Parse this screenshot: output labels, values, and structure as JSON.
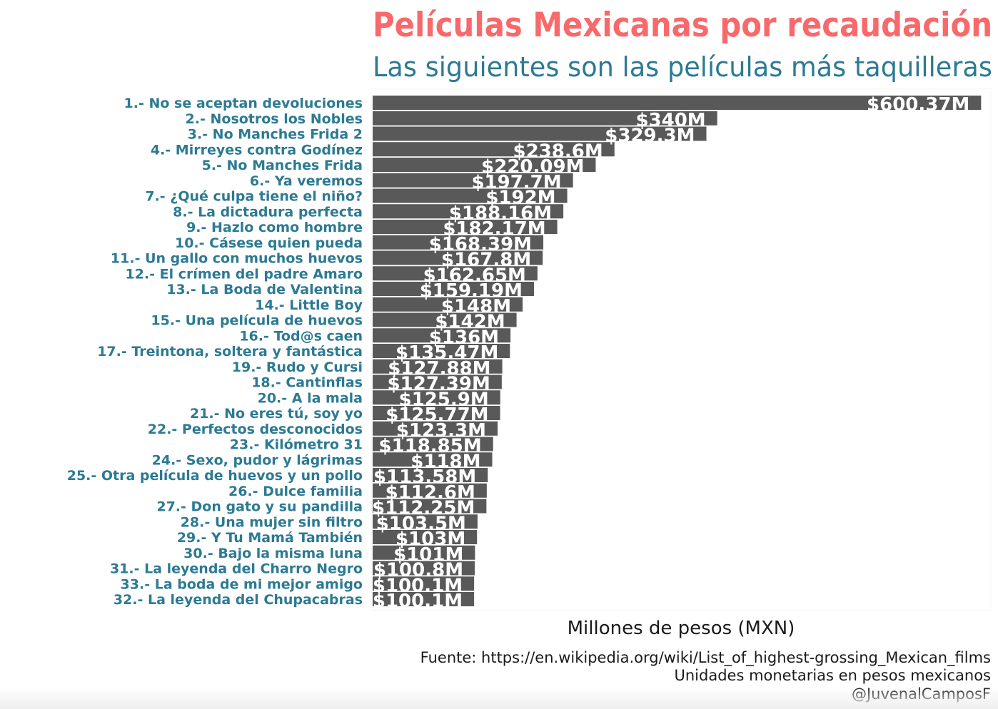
{
  "chart_data": {
    "type": "bar",
    "orientation": "horizontal",
    "title": "Películas Mexicanas por recaudación",
    "subtitle": "Las siguientes son las películas más taquilleras",
    "xlabel": "Millones de pesos (MXN)",
    "ylabel": "",
    "xlim": [
      0,
      610
    ],
    "grid": false,
    "categories": [
      "1.- No se aceptan devoluciones",
      "2.- Nosotros los Nobles",
      "3.- No Manches Frida 2",
      "4.- Mirreyes contra Godínez",
      "5.- No Manches Frida",
      "6.- Ya veremos",
      "7.- ¿Qué culpa tiene el niño?",
      "8.- La dictadura perfecta",
      "9.- Hazlo como hombre",
      "10.- Cásese quien pueda",
      "11.- Un gallo con muchos huevos",
      "12.- El crímen del padre Amaro",
      "13.- La Boda de Valentina",
      "14.- Little Boy",
      "15.- Una película de huevos",
      "16.- Tod@s caen",
      "17.- Treintona, soltera y fantástica",
      "19.- Rudo y Cursi",
      "18.- Cantinflas",
      "20.- A la mala",
      "21.- No eres tú, soy yo",
      "22.- Perfectos desconocidos",
      "23.- Kilómetro 31",
      "24.- Sexo, pudor y lágrimas",
      "25.- Otra película de huevos y un pollo",
      "26.- Dulce familia",
      "27.- Don gato y su pandilla",
      "28.- Una mujer sin filtro",
      "29.- Y Tu Mamá También",
      "30.- Bajo la misma luna",
      "31.- La leyenda del Charro Negro",
      "33.- La boda de mi mejor amigo",
      "32.- La leyenda del Chupacabras"
    ],
    "values": [
      600.37,
      340,
      329.3,
      238.6,
      220.09,
      197.7,
      192,
      188.16,
      182.17,
      168.39,
      167.8,
      162.65,
      159.19,
      148,
      142,
      136,
      135.47,
      127.88,
      127.39,
      125.9,
      125.77,
      123.3,
      118.85,
      118,
      113.58,
      112.6,
      112.25,
      103.5,
      103,
      101,
      100.8,
      100.1,
      100.1
    ],
    "data_labels": [
      "$600.37M",
      "$340M",
      "$329.3M",
      "$238.6M",
      "$220.09M",
      "$197.7M",
      "$192M",
      "$188.16M",
      "$182.17M",
      "$168.39M",
      "$167.8M",
      "$162.65M",
      "$159.19M",
      "$148M",
      "$142M",
      "$136M",
      "$135.47M",
      "$127.88M",
      "$127.39M",
      "$125.9M",
      "$125.77M",
      "$123.3M",
      "$118.85M",
      "$118M",
      "$113.58M",
      "$112.6M",
      "$112.25M",
      "$103.5M",
      "$103M",
      "$101M",
      "$100.8M",
      "$100.1M",
      "$100.1M"
    ],
    "caption": [
      "Fuente: https://en.wikipedia.org/wiki/List_of_highest-grossing_Mexican_films",
      "Unidades monetarias en pesos mexicanos",
      "@JuvenalCamposF"
    ],
    "colors": {
      "title": "#f8696b",
      "subtitle": "#2c7a93",
      "category_label": "#2c7a93",
      "bar": "#595959",
      "bar_label": "#ffffff",
      "axis_title": "#1a1a1a",
      "caption": "#1a1a1a"
    }
  }
}
